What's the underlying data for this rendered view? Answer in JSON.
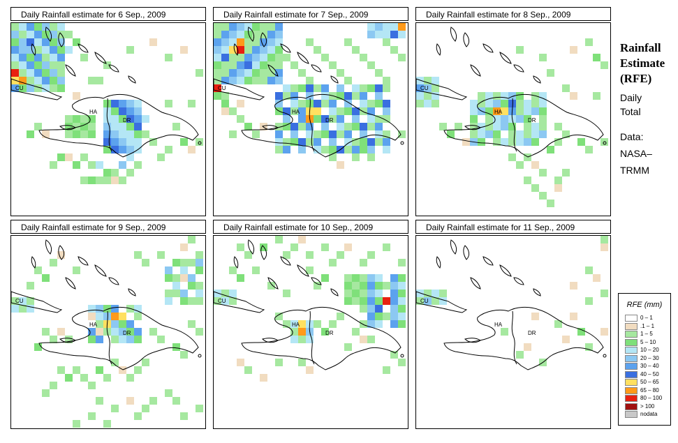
{
  "panels": [
    {
      "title": "Daily Rainfall estimate for  6 Sep., 2009"
    },
    {
      "title": "Daily Rainfall estimate for  7 Sep., 2009"
    },
    {
      "title": "Daily Rainfall estimate for  8 Sep., 2009"
    },
    {
      "title": "Daily Rainfall estimate for  9 Sep., 2009"
    },
    {
      "title": "Daily Rainfall estimate for  10 Sep., 2009"
    },
    {
      "title": "Daily Rainfall estimate for  11 Sep., 2009"
    }
  ],
  "map_labels": {
    "cuba": "CU",
    "haiti": "HA",
    "dr": "DR"
  },
  "side": {
    "title_line1": "Rainfall",
    "title_line2": "Estimate",
    "title_line3": "(RFE)",
    "sub_line1": "Daily",
    "sub_line2": "Total",
    "data_line1": "Data:",
    "data_line2": "NASA–",
    "data_line3": "TRMM"
  },
  "legend": {
    "title": "RFE (mm)",
    "items": [
      {
        "label": "0 – 1",
        "color": "#ffffff"
      },
      {
        "label": ".1 – 1",
        "color": "#f1dcc0"
      },
      {
        "label": "1 – 5",
        "color": "#a6e8a0"
      },
      {
        "label": "5 – 10",
        "color": "#7fe07a"
      },
      {
        "label": "10 – 20",
        "color": "#b4e6f5"
      },
      {
        "label": "20 – 30",
        "color": "#8cc8f2"
      },
      {
        "label": "30 – 40",
        "color": "#5ca2ee"
      },
      {
        "label": "40 – 50",
        "color": "#3a6fe0"
      },
      {
        "label": "50 – 65",
        "color": "#ffe060"
      },
      {
        "label": "65 – 80",
        "color": "#ff9a1a"
      },
      {
        "label": "80 – 100",
        "color": "#e82010"
      },
      {
        "label": "> 100",
        "color": "#a01010"
      },
      {
        "label": "nodata",
        "color": "#c8c8c8"
      }
    ]
  }
}
